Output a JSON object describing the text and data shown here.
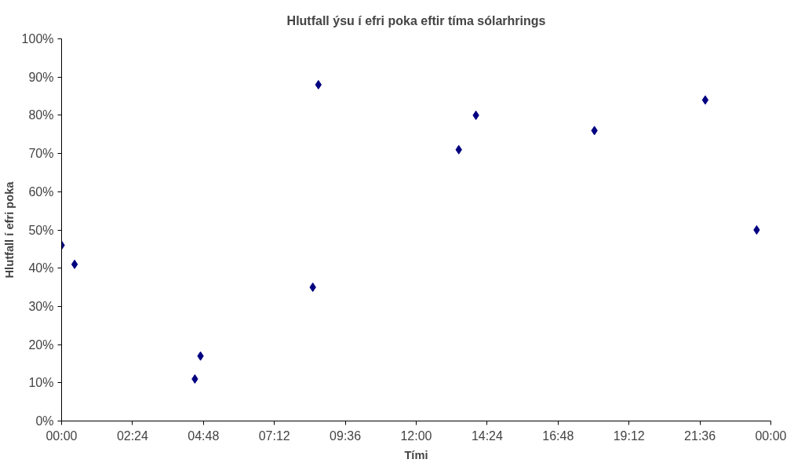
{
  "chart_data": {
    "type": "scatter",
    "title": "Hlutfall ýsu í efri poka eftir tíma sólarhrings",
    "xlabel": "Tími",
    "ylabel": "Hlutfall í efri poka",
    "x": [
      0,
      0.44,
      4.51,
      4.7,
      8.5,
      8.69,
      13.44,
      14.02,
      18.03,
      21.78,
      23.52
    ],
    "series": [
      {
        "color": "#000080",
        "values": [
          46,
          41,
          11,
          17,
          35,
          88,
          71,
          80,
          76,
          84,
          50
        ]
      }
    ],
    "xlim": [
      0,
      24
    ],
    "xticks": [
      {
        "value": 0,
        "label": "00:00"
      },
      {
        "value": 2.4,
        "label": "02:24"
      },
      {
        "value": 4.8,
        "label": "04:48"
      },
      {
        "value": 7.2,
        "label": "07:12"
      },
      {
        "value": 9.6,
        "label": "09:36"
      },
      {
        "value": 12,
        "label": "12:00"
      },
      {
        "value": 14.4,
        "label": "14:24"
      },
      {
        "value": 16.8,
        "label": "16:48"
      },
      {
        "value": 19.2,
        "label": "19:12"
      },
      {
        "value": 21.6,
        "label": "21:36"
      },
      {
        "value": 24,
        "label": "00:00"
      }
    ],
    "ylim": [
      0,
      100
    ],
    "yticks": [
      {
        "value": 0,
        "label": "0%"
      },
      {
        "value": 10,
        "label": "10%"
      },
      {
        "value": 20,
        "label": "20%"
      },
      {
        "value": 30,
        "label": "30%"
      },
      {
        "value": 40,
        "label": "40%"
      },
      {
        "value": 50,
        "label": "50%"
      },
      {
        "value": 60,
        "label": "60%"
      },
      {
        "value": 70,
        "label": "70%"
      },
      {
        "value": 80,
        "label": "80%"
      },
      {
        "value": 90,
        "label": "90%"
      },
      {
        "value": 100,
        "label": "100%"
      }
    ],
    "marker": "diamond",
    "grid": false
  }
}
